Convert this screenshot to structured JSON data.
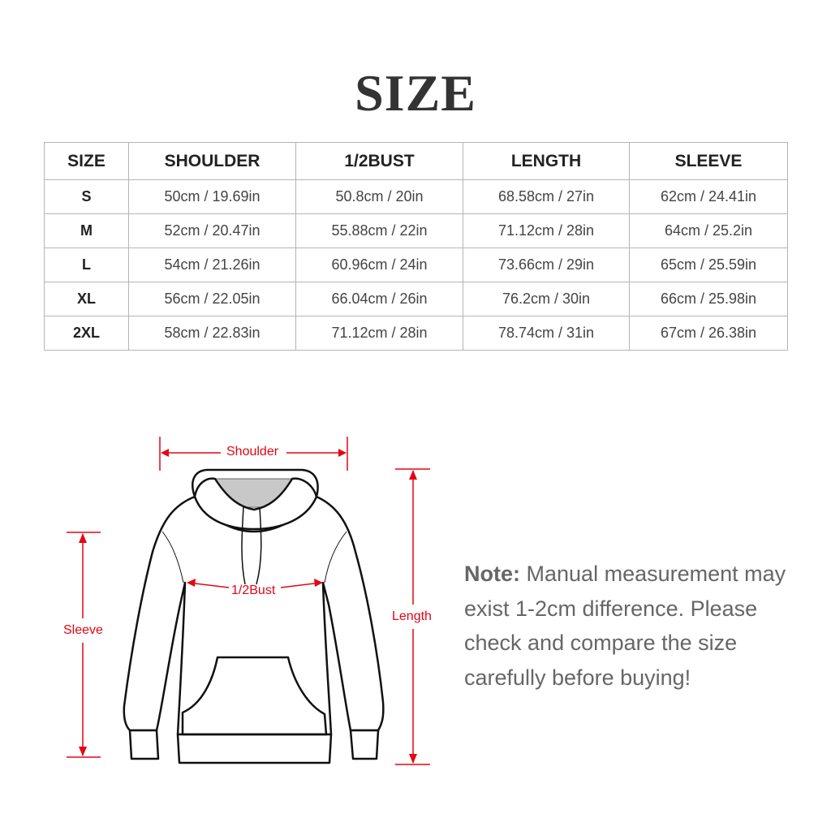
{
  "title": "SIZE",
  "table": {
    "headers": [
      "SIZE",
      "SHOULDER",
      "1/2BUST",
      "LENGTH",
      "SLEEVE"
    ],
    "rows": [
      [
        "S",
        "50cm / 19.69in",
        "50.8cm / 20in",
        "68.58cm / 27in",
        "62cm / 24.41in"
      ],
      [
        "M",
        "52cm / 20.47in",
        "55.88cm / 22in",
        "71.12cm / 28in",
        "64cm / 25.2in"
      ],
      [
        "L",
        "54cm / 21.26in",
        "60.96cm / 24in",
        "73.66cm / 29in",
        "65cm / 25.59in"
      ],
      [
        "XL",
        "56cm / 22.05in",
        "66.04cm / 26in",
        "76.2cm / 30in",
        "66cm / 25.98in"
      ],
      [
        "2XL",
        "58cm / 22.83in",
        "71.12cm / 28in",
        "78.74cm / 31in",
        "67cm / 26.38in"
      ]
    ]
  },
  "diagram": {
    "shoulder": "Shoulder",
    "bust": "1/2Bust",
    "length": "Length",
    "sleeve": "Sleeve",
    "accent": "#e30613"
  },
  "note": {
    "label": "Note:",
    "text": "Manual measurement may exist 1-2cm difference. Please check and compare the size carefully before buying!"
  }
}
